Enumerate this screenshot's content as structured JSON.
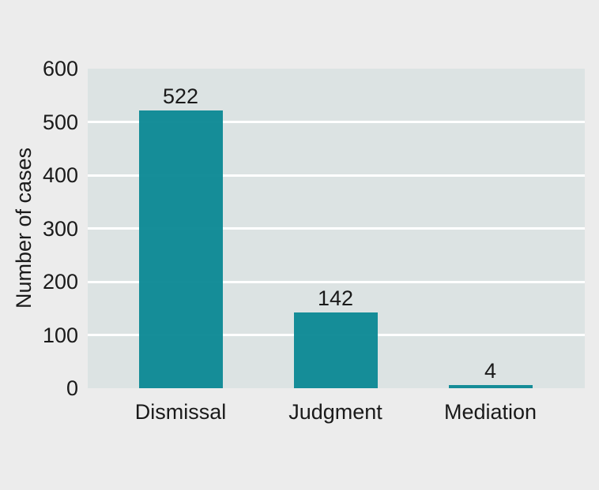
{
  "figure": {
    "background_color": "#ececec",
    "plot_background_color": "#dce3e3",
    "bar_color": "#0e8a96",
    "gridline_color": "#ffffff",
    "text_color": "#1a1a1a"
  },
  "chart_data": {
    "type": "bar",
    "categories": [
      "Dismissal",
      "Judgment",
      "Mediation"
    ],
    "values": [
      522,
      142,
      4
    ],
    "data_labels": [
      "522",
      "142",
      "4"
    ],
    "title": "",
    "xlabel": "",
    "ylabel": "Number of cases",
    "ylim": [
      0,
      600
    ],
    "yticks": [
      0,
      100,
      200,
      300,
      400,
      500,
      600
    ],
    "grid": "horizontal",
    "legend_position": "none"
  }
}
